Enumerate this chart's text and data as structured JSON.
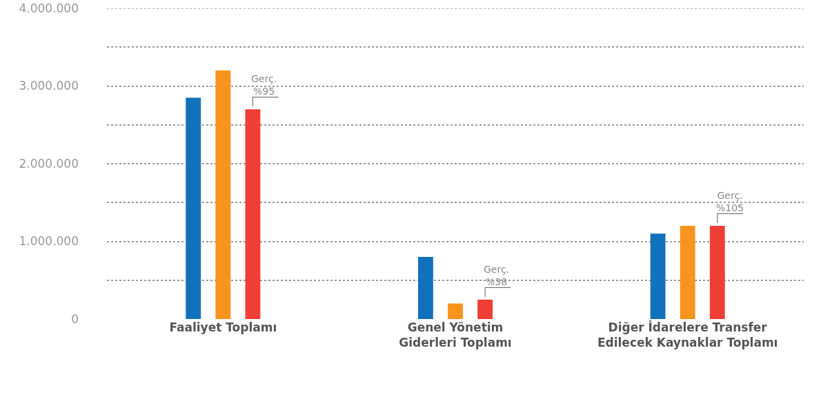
{
  "chart_data": {
    "type": "bar",
    "categories": [
      "Faaliyet Toplamı",
      "Genel Yönetim Giderleri Toplamı",
      "Diğer İdarelere Transfer Edilecek Kaynaklar Toplamı"
    ],
    "series": [
      {
        "color": "#1172bb",
        "values": [
          2850000,
          800000,
          1100000
        ]
      },
      {
        "color": "#f7941d",
        "values": [
          3200000,
          200000,
          1200000
        ]
      },
      {
        "color": "#ef3e36",
        "values": [
          2700000,
          250000,
          1200000
        ]
      }
    ],
    "ylim": [
      0,
      4000000
    ],
    "yticks": [
      0,
      {
        "value": 500000,
        "label": null
      },
      {
        "value": 1000000,
        "label": "1.000.000"
      },
      {
        "value": 1500000,
        "label": null
      },
      {
        "value": 2000000,
        "label": "2.000.000"
      },
      {
        "value": 2500000,
        "label": null
      },
      {
        "value": 3000000,
        "label": "3.000.000"
      },
      {
        "value": 3500000,
        "label": null
      },
      {
        "value": 4000000,
        "label": "4.000.000"
      }
    ],
    "grid": "y",
    "annotations": [
      "Gerç. %95",
      "Gerç. %38",
      "Gerç. %105"
    ]
  }
}
